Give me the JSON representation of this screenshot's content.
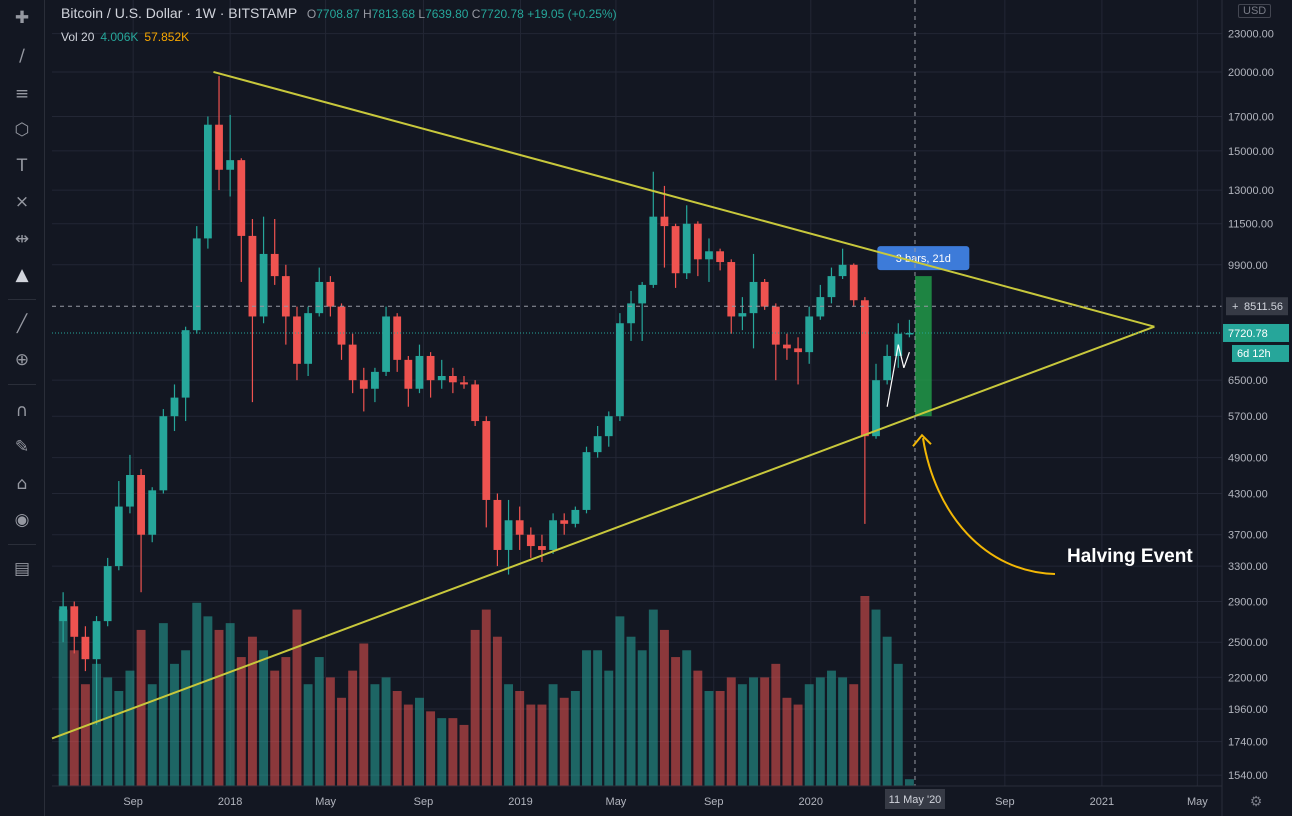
{
  "legend": {
    "symbol": "Bitcoin / U.S. Dollar",
    "interval": "1W",
    "exchange": "BITSTAMP",
    "open_label": "O",
    "open": "7708.87",
    "high_label": "H",
    "high": "7813.68",
    "low_label": "L",
    "low": "7639.80",
    "close_label": "C",
    "close": "7720.78",
    "change": "+19.05 (+0.25%)",
    "volume_label": "Vol 20",
    "volume_value": "4.006K",
    "volume_ma": "57.852K"
  },
  "currency": "USD",
  "colors": {
    "background": "#131722",
    "up": "#26a69a",
    "down": "#ef5350",
    "trendline": "#c8c83c",
    "grid": "#232735",
    "range_box": "#22a04b",
    "range_label": "#3d7bd9",
    "annotation": "#f2b705",
    "price_tag": "#26a69a"
  },
  "toolbar": [
    "crosshair-icon",
    "trend-line-icon",
    "fib-icon",
    "patterns-icon",
    "text-icon",
    "forecast-icon",
    "measure-icon",
    "warning-icon",
    "ruler-icon",
    "zoom-icon",
    "magnet-icon",
    "lock-drawings-icon",
    "unlock-icon",
    "eye-icon",
    "trash-icon"
  ],
  "chart_data": {
    "type": "candlestick",
    "title": "",
    "y_scale": "log",
    "ylim": [
      1480,
      26000
    ],
    "xlim": [
      "2017-05-22",
      "2021-06-01"
    ],
    "x_ticks": [
      {
        "date": "2017-09-01",
        "label": "Sep"
      },
      {
        "date": "2018-01-01",
        "label": "2018"
      },
      {
        "date": "2018-05-01",
        "label": "May"
      },
      {
        "date": "2018-09-01",
        "label": "Sep"
      },
      {
        "date": "2019-01-01",
        "label": "2019"
      },
      {
        "date": "2019-05-01",
        "label": "May"
      },
      {
        "date": "2019-09-01",
        "label": "Sep"
      },
      {
        "date": "2020-01-01",
        "label": "2020"
      },
      {
        "date": "2020-09-01",
        "label": "Sep"
      },
      {
        "date": "2021-01-01",
        "label": "2021"
      },
      {
        "date": "2021-05-01",
        "label": "May"
      }
    ],
    "crosshair_date": "2020-05-11",
    "crosshair_label": "11 May '20",
    "y_ticks": [
      "23000.00",
      "20000.00",
      "17000.00",
      "15000.00",
      "13000.00",
      "11500.00",
      "9900.00",
      "6500.00",
      "5700.00",
      "4900.00",
      "4300.00",
      "3700.00",
      "3300.00",
      "2900.00",
      "2500.00",
      "2200.00",
      "1960.00",
      "1740.00",
      "1540.00"
    ],
    "crosshair_price": "8511.56",
    "last_price": "7720.78",
    "countdown": "6d 12h",
    "series": [
      {
        "date": "2017-06-05",
        "o": 2700,
        "h": 3000,
        "l": 2500,
        "c": 2850
      },
      {
        "date": "2017-06-19",
        "o": 2850,
        "h": 2900,
        "l": 2400,
        "c": 2550
      },
      {
        "date": "2017-07-03",
        "o": 2550,
        "h": 2650,
        "l": 2250,
        "c": 2350
      },
      {
        "date": "2017-07-17",
        "o": 2350,
        "h": 2750,
        "l": 1850,
        "c": 2700
      },
      {
        "date": "2017-07-31",
        "o": 2700,
        "h": 3400,
        "l": 2650,
        "c": 3300
      },
      {
        "date": "2017-08-14",
        "o": 3300,
        "h": 4500,
        "l": 3250,
        "c": 4100
      },
      {
        "date": "2017-08-28",
        "o": 4100,
        "h": 4950,
        "l": 4000,
        "c": 4600
      },
      {
        "date": "2017-09-11",
        "o": 4600,
        "h": 4700,
        "l": 3000,
        "c": 3700
      },
      {
        "date": "2017-09-25",
        "o": 3700,
        "h": 4400,
        "l": 3600,
        "c": 4350
      },
      {
        "date": "2017-10-09",
        "o": 4350,
        "h": 5850,
        "l": 4300,
        "c": 5700
      },
      {
        "date": "2017-10-23",
        "o": 5700,
        "h": 6400,
        "l": 5400,
        "c": 6100
      },
      {
        "date": "2017-11-06",
        "o": 6100,
        "h": 7900,
        "l": 5600,
        "c": 7800
      },
      {
        "date": "2017-11-20",
        "o": 7800,
        "h": 11400,
        "l": 7700,
        "c": 10900
      },
      {
        "date": "2017-12-04",
        "o": 10900,
        "h": 17000,
        "l": 10500,
        "c": 16500
      },
      {
        "date": "2017-12-18",
        "o": 16500,
        "h": 19700,
        "l": 13000,
        "c": 14000
      },
      {
        "date": "2018-01-01",
        "o": 14000,
        "h": 17100,
        "l": 12700,
        "c": 14500
      },
      {
        "date": "2018-01-15",
        "o": 14500,
        "h": 14600,
        "l": 9300,
        "c": 11000
      },
      {
        "date": "2018-01-29",
        "o": 11000,
        "h": 11700,
        "l": 6000,
        "c": 8200
      },
      {
        "date": "2018-02-12",
        "o": 8200,
        "h": 11800,
        "l": 8000,
        "c": 10300
      },
      {
        "date": "2018-02-26",
        "o": 10300,
        "h": 11700,
        "l": 9200,
        "c": 9500
      },
      {
        "date": "2018-03-12",
        "o": 9500,
        "h": 9900,
        "l": 7400,
        "c": 8200
      },
      {
        "date": "2018-03-26",
        "o": 8200,
        "h": 8500,
        "l": 6500,
        "c": 6900
      },
      {
        "date": "2018-04-09",
        "o": 6900,
        "h": 8500,
        "l": 6600,
        "c": 8300
      },
      {
        "date": "2018-04-23",
        "o": 8300,
        "h": 9800,
        "l": 8200,
        "c": 9300
      },
      {
        "date": "2018-05-07",
        "o": 9300,
        "h": 9500,
        "l": 8200,
        "c": 8500
      },
      {
        "date": "2018-05-21",
        "o": 8500,
        "h": 8600,
        "l": 7000,
        "c": 7400
      },
      {
        "date": "2018-06-04",
        "o": 7400,
        "h": 7700,
        "l": 6200,
        "c": 6500
      },
      {
        "date": "2018-06-18",
        "o": 6500,
        "h": 6800,
        "l": 5800,
        "c": 6300
      },
      {
        "date": "2018-07-02",
        "o": 6300,
        "h": 6800,
        "l": 6000,
        "c": 6700
      },
      {
        "date": "2018-07-16",
        "o": 6700,
        "h": 8500,
        "l": 6600,
        "c": 8200
      },
      {
        "date": "2018-07-30",
        "o": 8200,
        "h": 8300,
        "l": 6700,
        "c": 7000
      },
      {
        "date": "2018-08-13",
        "o": 7000,
        "h": 7100,
        "l": 5900,
        "c": 6300
      },
      {
        "date": "2018-08-27",
        "o": 6300,
        "h": 7400,
        "l": 6200,
        "c": 7100
      },
      {
        "date": "2018-09-10",
        "o": 7100,
        "h": 7200,
        "l": 6100,
        "c": 6500
      },
      {
        "date": "2018-09-24",
        "o": 6500,
        "h": 7000,
        "l": 6300,
        "c": 6600
      },
      {
        "date": "2018-10-08",
        "o": 6600,
        "h": 6800,
        "l": 6200,
        "c": 6450
      },
      {
        "date": "2018-10-22",
        "o": 6450,
        "h": 6600,
        "l": 6300,
        "c": 6400
      },
      {
        "date": "2018-11-05",
        "o": 6400,
        "h": 6500,
        "l": 5500,
        "c": 5600
      },
      {
        "date": "2018-11-19",
        "o": 5600,
        "h": 5700,
        "l": 3800,
        "c": 4200
      },
      {
        "date": "2018-12-03",
        "o": 4200,
        "h": 4300,
        "l": 3300,
        "c": 3500
      },
      {
        "date": "2018-12-17",
        "o": 3500,
        "h": 4200,
        "l": 3200,
        "c": 3900
      },
      {
        "date": "2018-12-31",
        "o": 3900,
        "h": 4100,
        "l": 3500,
        "c": 3700
      },
      {
        "date": "2019-01-14",
        "o": 3700,
        "h": 3800,
        "l": 3400,
        "c": 3550
      },
      {
        "date": "2019-01-28",
        "o": 3550,
        "h": 3700,
        "l": 3350,
        "c": 3500
      },
      {
        "date": "2019-02-11",
        "o": 3500,
        "h": 4000,
        "l": 3450,
        "c": 3900
      },
      {
        "date": "2019-02-25",
        "o": 3900,
        "h": 4000,
        "l": 3700,
        "c": 3850
      },
      {
        "date": "2019-03-11",
        "o": 3850,
        "h": 4100,
        "l": 3800,
        "c": 4050
      },
      {
        "date": "2019-03-25",
        "o": 4050,
        "h": 5100,
        "l": 4000,
        "c": 5000
      },
      {
        "date": "2019-04-08",
        "o": 5000,
        "h": 5500,
        "l": 4900,
        "c": 5300
      },
      {
        "date": "2019-04-22",
        "o": 5300,
        "h": 5800,
        "l": 5100,
        "c": 5700
      },
      {
        "date": "2019-05-06",
        "o": 5700,
        "h": 8300,
        "l": 5600,
        "c": 8000
      },
      {
        "date": "2019-05-20",
        "o": 8000,
        "h": 9000,
        "l": 7500,
        "c": 8600
      },
      {
        "date": "2019-06-03",
        "o": 8600,
        "h": 9300,
        "l": 7500,
        "c": 9200
      },
      {
        "date": "2019-06-17",
        "o": 9200,
        "h": 13900,
        "l": 9100,
        "c": 11800
      },
      {
        "date": "2019-07-01",
        "o": 11800,
        "h": 13200,
        "l": 9800,
        "c": 11400
      },
      {
        "date": "2019-07-15",
        "o": 11400,
        "h": 11500,
        "l": 9100,
        "c": 9600
      },
      {
        "date": "2019-07-29",
        "o": 9600,
        "h": 12300,
        "l": 9400,
        "c": 11500
      },
      {
        "date": "2019-08-12",
        "o": 11500,
        "h": 11600,
        "l": 9500,
        "c": 10100
      },
      {
        "date": "2019-08-26",
        "o": 10100,
        "h": 10900,
        "l": 9300,
        "c": 10400
      },
      {
        "date": "2019-09-09",
        "o": 10400,
        "h": 10500,
        "l": 9700,
        "c": 10000
      },
      {
        "date": "2019-09-23",
        "o": 10000,
        "h": 10100,
        "l": 7700,
        "c": 8200
      },
      {
        "date": "2019-10-07",
        "o": 8200,
        "h": 8800,
        "l": 7800,
        "c": 8300
      },
      {
        "date": "2019-10-21",
        "o": 8300,
        "h": 10300,
        "l": 7300,
        "c": 9300
      },
      {
        "date": "2019-11-04",
        "o": 9300,
        "h": 9400,
        "l": 8400,
        "c": 8500
      },
      {
        "date": "2019-11-18",
        "o": 8500,
        "h": 8600,
        "l": 6500,
        "c": 7400
      },
      {
        "date": "2019-12-02",
        "o": 7400,
        "h": 7700,
        "l": 7000,
        "c": 7300
      },
      {
        "date": "2019-12-16",
        "o": 7300,
        "h": 7600,
        "l": 6400,
        "c": 7200
      },
      {
        "date": "2019-12-30",
        "o": 7200,
        "h": 8500,
        "l": 6900,
        "c": 8200
      },
      {
        "date": "2020-01-13",
        "o": 8200,
        "h": 9200,
        "l": 8100,
        "c": 8800
      },
      {
        "date": "2020-01-27",
        "o": 8800,
        "h": 9800,
        "l": 8600,
        "c": 9500
      },
      {
        "date": "2020-02-10",
        "o": 9500,
        "h": 10500,
        "l": 9400,
        "c": 9900
      },
      {
        "date": "2020-02-24",
        "o": 9900,
        "h": 9950,
        "l": 8500,
        "c": 8700
      },
      {
        "date": "2020-03-09",
        "o": 8700,
        "h": 8800,
        "l": 3850,
        "c": 5300
      },
      {
        "date": "2020-03-23",
        "o": 5300,
        "h": 6900,
        "l": 5250,
        "c": 6500
      },
      {
        "date": "2020-04-06",
        "o": 6500,
        "h": 7400,
        "l": 6400,
        "c": 7100
      },
      {
        "date": "2020-04-20",
        "o": 7100,
        "h": 8000,
        "l": 6800,
        "c": 7700
      },
      {
        "date": "2020-05-04",
        "o": 7700,
        "h": 8100,
        "l": 7600,
        "c": 7720.78
      }
    ],
    "volume": [
      2.6,
      2.0,
      1.5,
      1.8,
      1.6,
      1.4,
      1.7,
      2.3,
      1.5,
      2.4,
      1.8,
      2.0,
      2.7,
      2.5,
      2.3,
      2.4,
      1.9,
      2.2,
      2.0,
      1.7,
      1.9,
      2.6,
      1.5,
      1.9,
      1.6,
      1.3,
      1.7,
      2.1,
      1.5,
      1.6,
      1.4,
      1.2,
      1.3,
      1.1,
      1.0,
      1.0,
      0.9,
      2.3,
      2.6,
      2.2,
      1.5,
      1.4,
      1.2,
      1.2,
      1.5,
      1.3,
      1.4,
      2.0,
      2.0,
      1.7,
      2.5,
      2.2,
      2.0,
      2.6,
      2.3,
      1.9,
      2.0,
      1.7,
      1.4,
      1.4,
      1.6,
      1.5,
      1.6,
      1.6,
      1.8,
      1.3,
      1.2,
      1.5,
      1.6,
      1.7,
      1.6,
      1.5,
      2.8,
      2.6,
      2.2,
      1.8,
      0.1
    ],
    "trendlines": [
      {
        "name": "upper",
        "from": {
          "date": "2017-12-11",
          "price": 20000
        },
        "to": {
          "date": "2021-03-08",
          "price": 7900
        }
      },
      {
        "name": "lower",
        "from": {
          "date": "2017-05-22",
          "price": 1760
        },
        "to": {
          "date": "2021-03-08",
          "price": 7900
        }
      },
      {
        "name": "pullback-a",
        "from": {
          "date": "2020-04-06",
          "price": 5900
        },
        "to": {
          "date": "2020-04-20",
          "price": 7400
        }
      },
      {
        "name": "pullback-b",
        "from": {
          "date": "2020-04-20",
          "price": 7400
        },
        "to": {
          "date": "2020-04-27",
          "price": 6800
        }
      },
      {
        "name": "pullback-c",
        "from": {
          "date": "2020-04-27",
          "price": 6800
        },
        "to": {
          "date": "2020-05-04",
          "price": 7200
        }
      }
    ],
    "date_range": {
      "from": "2020-05-11",
      "to": "2020-06-01",
      "price_high": 9500,
      "price_low": 5700,
      "label": "3 bars, 21d"
    },
    "annotation": {
      "text": "Halving Event"
    }
  }
}
